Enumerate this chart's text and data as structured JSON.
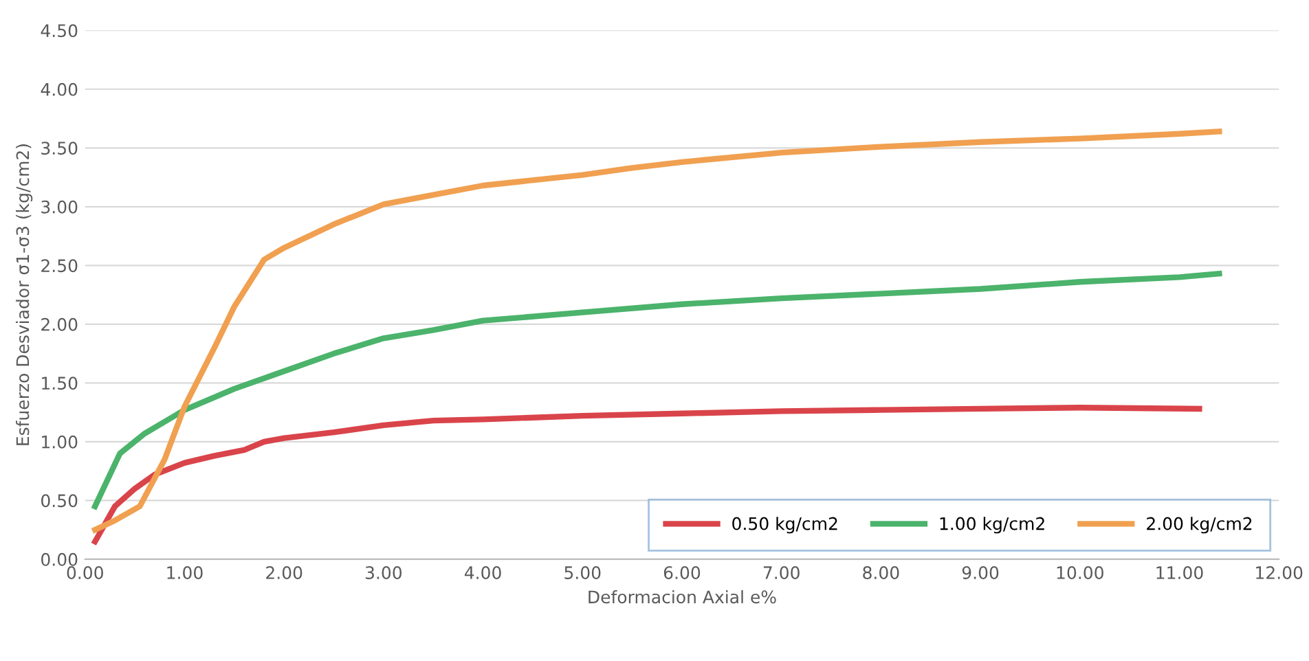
{
  "chart_data": {
    "type": "line",
    "xlabel": "Deformacion Axial e%",
    "ylabel": "Esfuerzo Desviador σ1-σ3 (kg/cm2)",
    "xlim": [
      0,
      12
    ],
    "xticks": [
      {
        "value": 0,
        "label": "0.00"
      },
      {
        "value": 1,
        "label": "1.00"
      },
      {
        "value": 2,
        "label": "2.00"
      },
      {
        "value": 3,
        "label": "3.00"
      },
      {
        "value": 4,
        "label": "4.00"
      },
      {
        "value": 5,
        "label": "5.00"
      },
      {
        "value": 6,
        "label": "6.00"
      },
      {
        "value": 7,
        "label": "7.00"
      },
      {
        "value": 8,
        "label": "8.00"
      },
      {
        "value": 9,
        "label": "9.00"
      },
      {
        "value": 10,
        "label": "10.00"
      },
      {
        "value": 11,
        "label": "11.00"
      },
      {
        "value": 12,
        "label": "12.00"
      }
    ],
    "ylim": [
      0,
      4.5
    ],
    "yticks": [
      {
        "value": 0,
        "label": "0.00"
      },
      {
        "value": 0.5,
        "label": "0.50"
      },
      {
        "value": 1,
        "label": "1.00"
      },
      {
        "value": 1.5,
        "label": "1.50"
      },
      {
        "value": 2,
        "label": "2.00"
      },
      {
        "value": 2.5,
        "label": "2.50"
      },
      {
        "value": 3,
        "label": "3.00"
      },
      {
        "value": 3.5,
        "label": "3.50"
      },
      {
        "value": 4,
        "label": "4.00"
      },
      {
        "value": 4.5,
        "label": "4.50"
      }
    ],
    "grid": "y",
    "legend": "bottom right",
    "marker": "none",
    "line_style": "solid",
    "series": [
      {
        "name": "0.50 kg/cm2",
        "color": "#d9444a",
        "x": [
          0.1,
          0.3,
          0.5,
          0.7,
          1.0,
          1.3,
          1.6,
          1.8,
          2.0,
          2.5,
          3.0,
          3.5,
          4.0,
          5.0,
          6.0,
          7.0,
          8.0,
          9.0,
          10.0,
          11.2
        ],
        "values": [
          0.15,
          0.45,
          0.6,
          0.72,
          0.82,
          0.88,
          0.93,
          1.0,
          1.03,
          1.08,
          1.14,
          1.18,
          1.19,
          1.22,
          1.24,
          1.26,
          1.27,
          1.28,
          1.29,
          1.28
        ]
      },
      {
        "name": "1.00 kg/cm2",
        "color": "#4bb36b",
        "x": [
          0.1,
          0.35,
          0.6,
          1.0,
          1.5,
          2.0,
          2.5,
          3.0,
          3.5,
          4.0,
          5.0,
          6.0,
          7.0,
          8.0,
          9.0,
          10.0,
          11.0,
          11.4
        ],
        "values": [
          0.45,
          0.9,
          1.07,
          1.27,
          1.45,
          1.6,
          1.75,
          1.88,
          1.95,
          2.03,
          2.1,
          2.17,
          2.22,
          2.26,
          2.3,
          2.36,
          2.4,
          2.43
        ]
      },
      {
        "name": "2.00 kg/cm2",
        "color": "#f0a050",
        "x": [
          0.1,
          0.3,
          0.55,
          0.8,
          1.0,
          1.3,
          1.5,
          1.8,
          2.0,
          2.5,
          3.0,
          3.5,
          4.0,
          5.0,
          5.5,
          6.0,
          7.0,
          8.0,
          9.0,
          10.0,
          11.0,
          11.4
        ],
        "values": [
          0.25,
          0.33,
          0.45,
          0.85,
          1.3,
          1.8,
          2.15,
          2.55,
          2.65,
          2.85,
          3.02,
          3.1,
          3.18,
          3.27,
          3.33,
          3.38,
          3.46,
          3.51,
          3.55,
          3.58,
          3.62,
          3.64
        ]
      }
    ]
  }
}
